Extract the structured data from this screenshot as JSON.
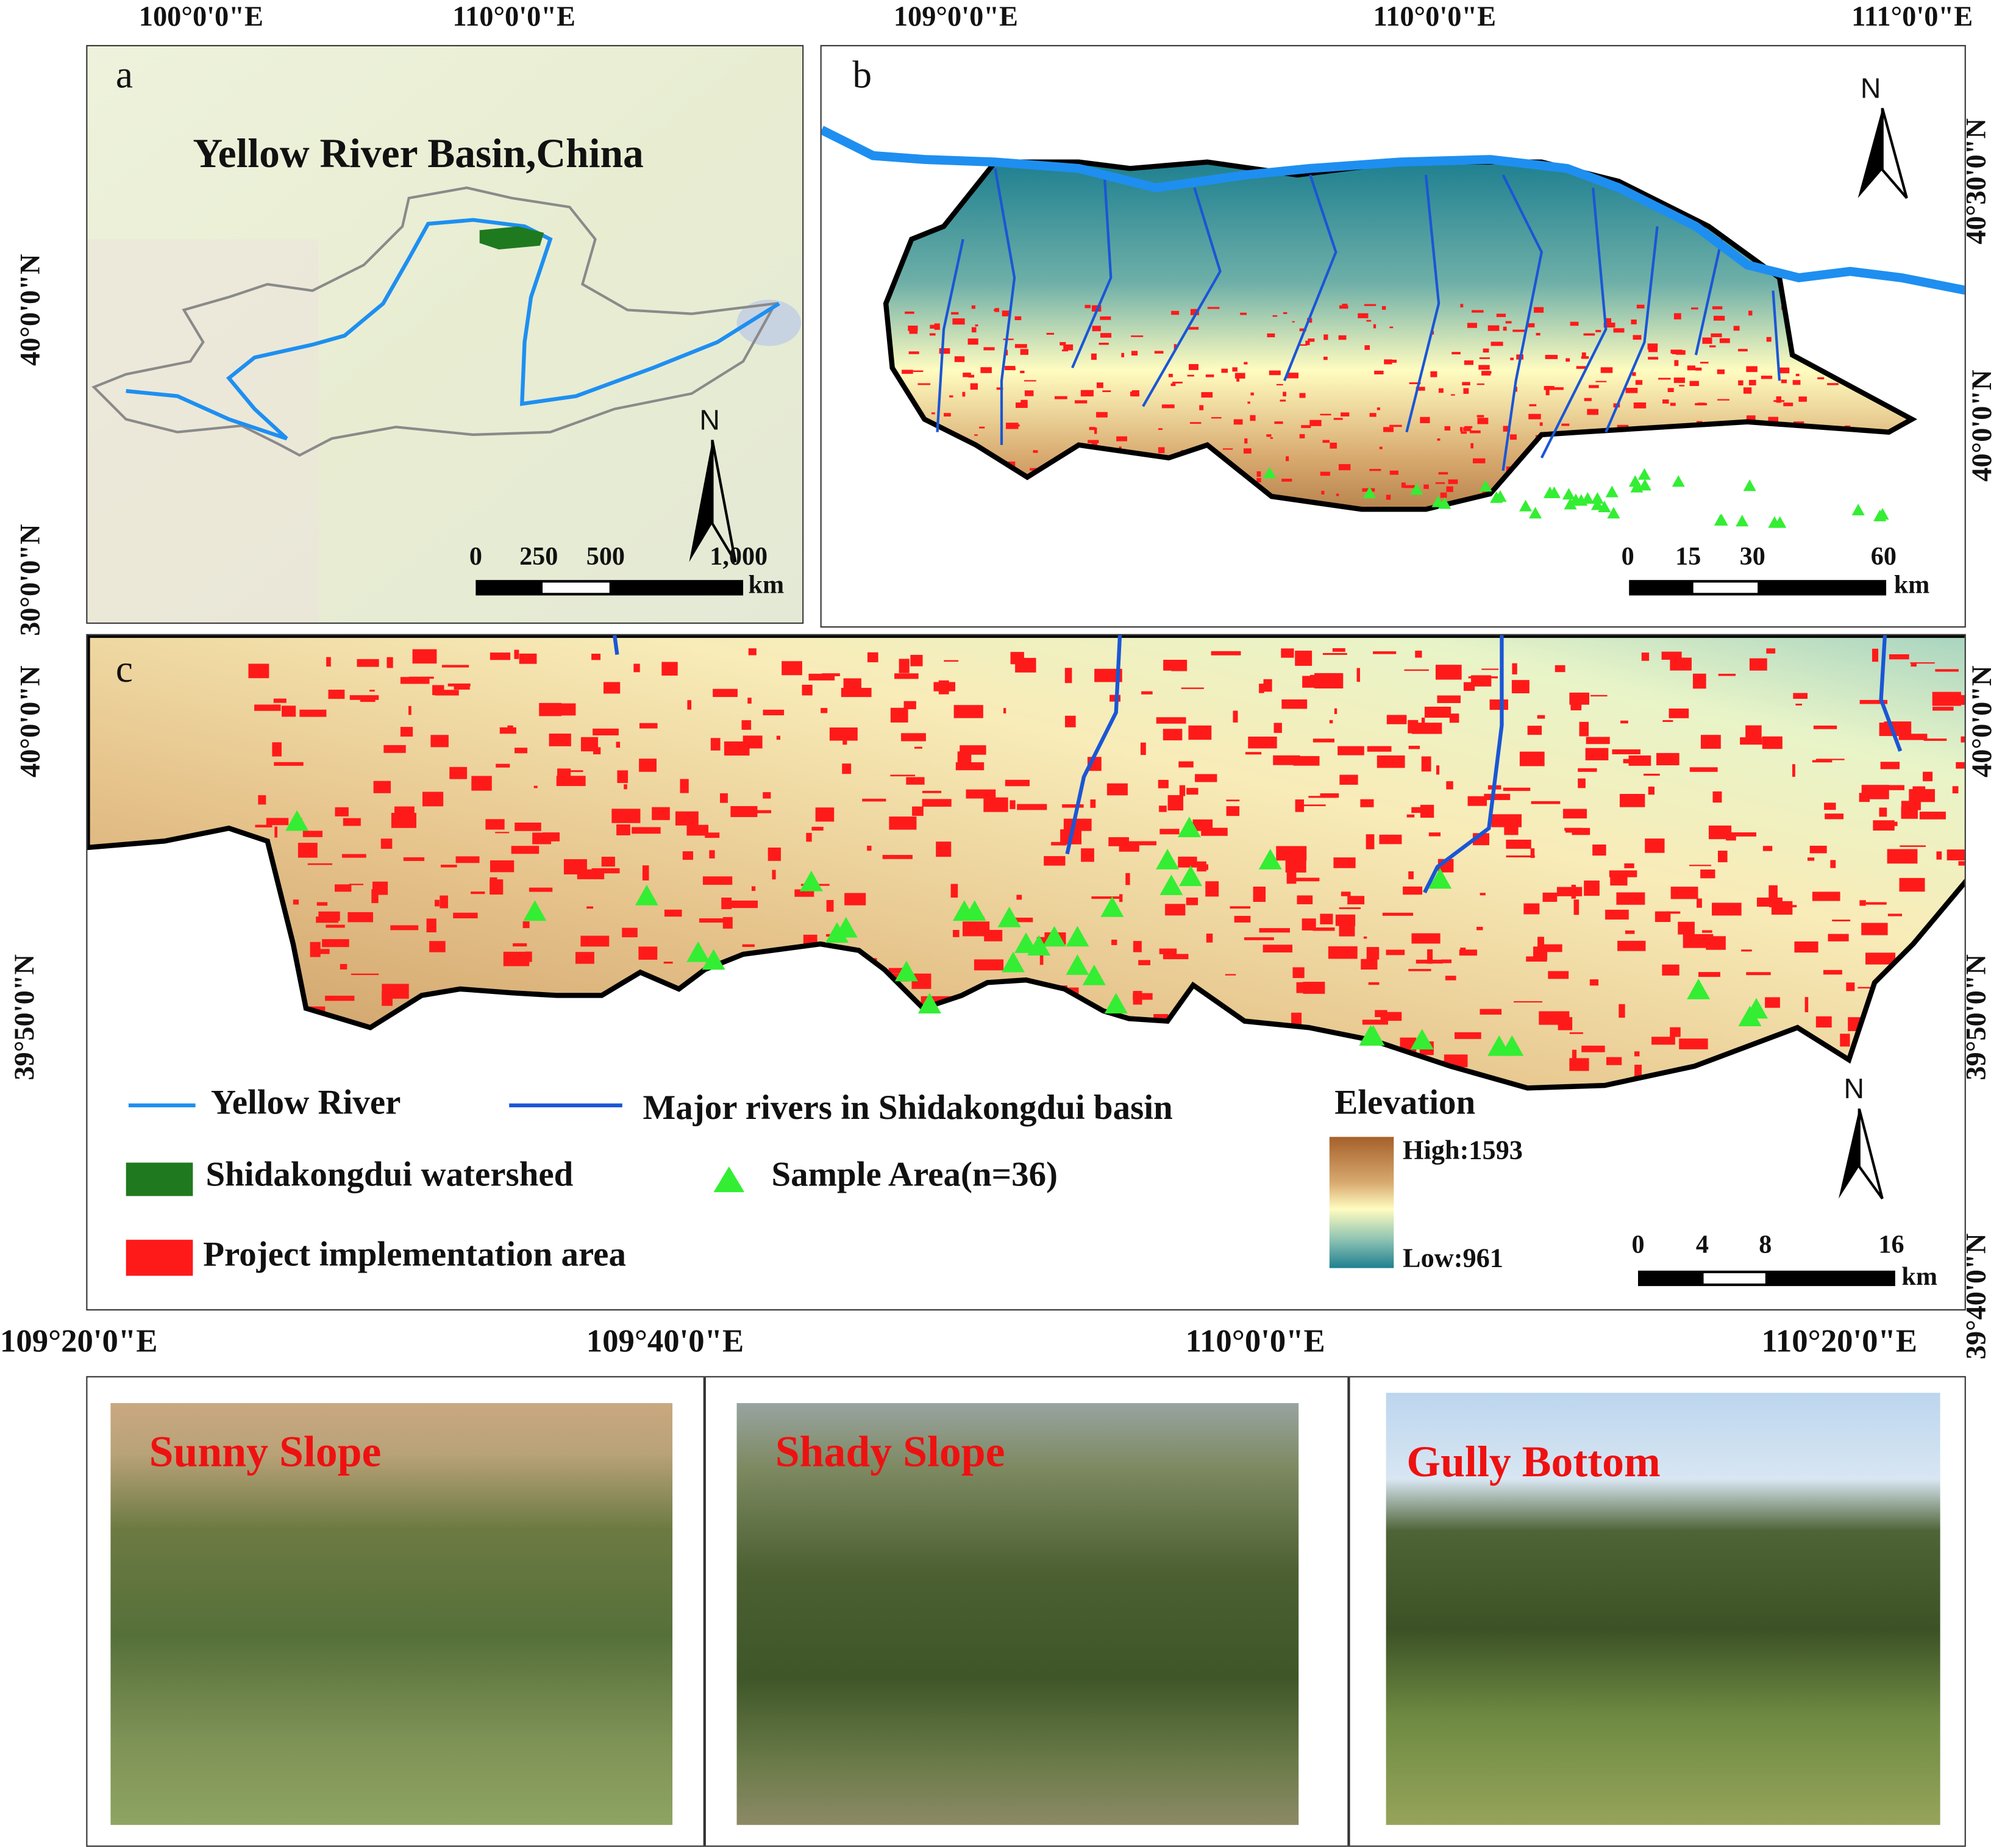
{
  "panel_a": {
    "letter": "a",
    "title": "Yellow River Basin,China",
    "top_labels": [
      "100°0'0\"E",
      "110°0'0\"E"
    ],
    "left_labels": [
      "40°0'0\"N",
      "30°0'0\"N"
    ],
    "north": "N",
    "scale_labels": [
      "0",
      "250",
      "500",
      "1,000"
    ],
    "scale_unit": "km"
  },
  "panel_b": {
    "letter": "b",
    "top_labels": [
      "109°0'0\"E",
      "110°0'0\"E",
      "111°0'0\"E"
    ],
    "right_labels": [
      "40°30'0\"N",
      "40°0'0\"N"
    ],
    "north": "N",
    "scale_labels": [
      "0",
      "15",
      "30",
      "60"
    ],
    "scale_unit": "km"
  },
  "panel_c": {
    "letter": "c",
    "left_labels": [
      "40°0'0\"N",
      "39°50'0\"N"
    ],
    "right_labels": [
      "40°0'0\"N",
      "39°50'0\"N",
      "39°40'0\"N"
    ],
    "bottom_labels": [
      "109°20'0\"E",
      "109°40'0\"E",
      "110°0'0\"E",
      "110°20'0\"E"
    ],
    "north": "N",
    "scale_labels": [
      "0",
      "4",
      "8",
      "16"
    ],
    "scale_unit": "km",
    "sample_count": 36
  },
  "legend": {
    "yellow_river": "Yellow River",
    "major_rivers": "Major rivers in Shidakongdui basin",
    "watershed": "Shidakongdui watershed",
    "sample_area": "Sample Area(n=36)",
    "project_area": "Project implementation area",
    "elevation_title": "Elevation",
    "elevation_high": "High:1593",
    "elevation_low": "Low:961"
  },
  "photos": [
    {
      "title": "Sunny Slope"
    },
    {
      "title": "Shady Slope"
    },
    {
      "title": "Gully Bottom"
    }
  ],
  "colors": {
    "yellow_river": "#1e8ff0",
    "major_rivers": "#1a56d6",
    "watershed": "#1f7a1f",
    "sample_area": "#33ee33",
    "project_area": "#ff1a1a",
    "elevation_high": "#a5602a",
    "elevation_mid": "#fffcc0",
    "elevation_low": "#1f8090"
  }
}
